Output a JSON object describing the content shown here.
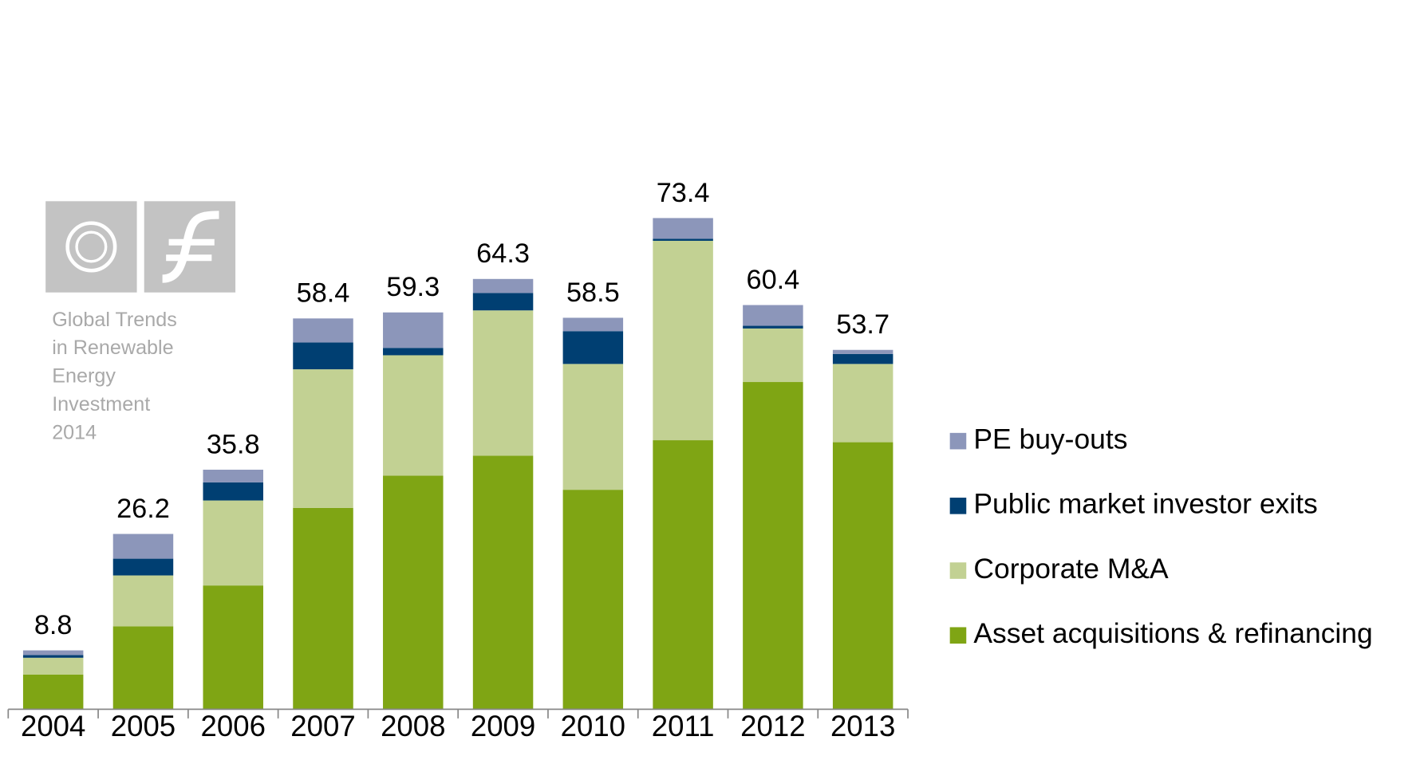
{
  "chart_data": {
    "type": "bar",
    "stacked": true,
    "categories": [
      "2004",
      "2005",
      "2006",
      "2007",
      "2008",
      "2009",
      "2010",
      "2011",
      "2012",
      "2013"
    ],
    "series": [
      {
        "name": "Asset acquisitions & refinancing",
        "color": "#7fa514",
        "values": [
          5.2,
          12.4,
          18.5,
          30.1,
          34.9,
          37.9,
          32.8,
          40.2,
          48.9,
          39.9
        ]
      },
      {
        "name": "Corporate M&A",
        "color": "#c2d193",
        "values": [
          2.5,
          7.6,
          12.7,
          20.7,
          18.0,
          21.7,
          18.8,
          29.8,
          8.0,
          11.7
        ]
      },
      {
        "name": "Public market investor exits",
        "color": "#003f72",
        "values": [
          0.4,
          2.5,
          2.7,
          4.0,
          1.1,
          2.6,
          4.9,
          0.3,
          0.4,
          1.5
        ]
      },
      {
        "name": "PE buy-outs",
        "color": "#8c96ba",
        "values": [
          0.7,
          3.7,
          1.9,
          3.6,
          5.3,
          2.1,
          2.0,
          3.1,
          3.1,
          0.6
        ]
      }
    ],
    "totals": [
      8.8,
      26.2,
      35.8,
      58.4,
      59.3,
      64.3,
      58.5,
      73.4,
      60.4,
      53.7
    ],
    "ylim": [
      0,
      105.9
    ],
    "legend": "right",
    "watermark": [
      "Global Trends",
      "in Renewable",
      "Energy",
      "Investment",
      "2014"
    ]
  }
}
